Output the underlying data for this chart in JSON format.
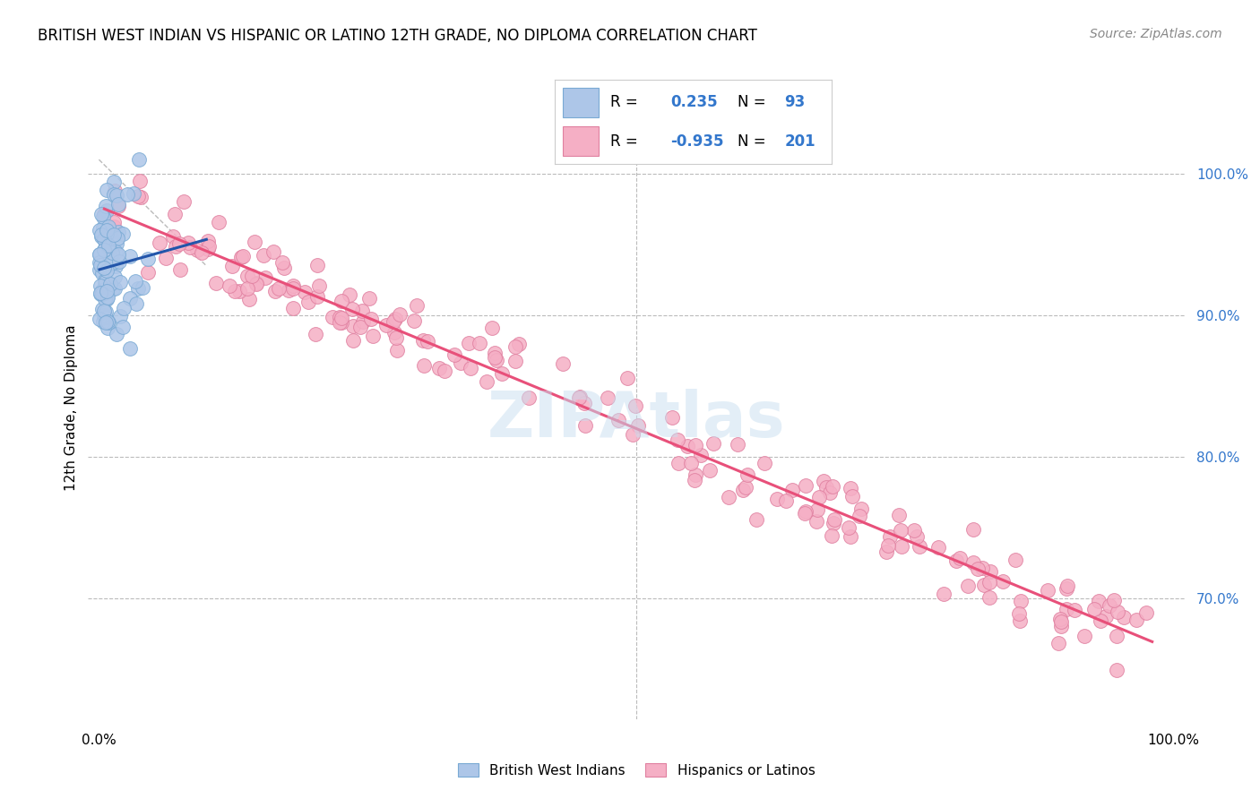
{
  "title": "BRITISH WEST INDIAN VS HISPANIC OR LATINO 12TH GRADE, NO DIPLOMA CORRELATION CHART",
  "source": "Source: ZipAtlas.com",
  "ylabel": "12th Grade, No Diploma",
  "blue_R": 0.235,
  "blue_N": 93,
  "pink_R": -0.935,
  "pink_N": 201,
  "blue_color": "#adc6e8",
  "blue_edge_color": "#7aaad4",
  "blue_line_color": "#2255aa",
  "pink_color": "#f5afc5",
  "pink_edge_color": "#e080a0",
  "pink_line_color": "#e8507a",
  "watermark_color": "#c8dff0",
  "background_color": "#ffffff",
  "grid_color": "#bbbbbb",
  "right_label_color": "#3377cc",
  "title_fontsize": 12,
  "source_fontsize": 10,
  "xlim": [
    -0.01,
    1.01
  ],
  "ylim": [
    0.615,
    1.055
  ],
  "ytick_positions": [
    0.7,
    0.8,
    0.9,
    1.0
  ],
  "ytick_labels": [
    "70.0%",
    "80.0%",
    "90.0%",
    "100.0%"
  ]
}
